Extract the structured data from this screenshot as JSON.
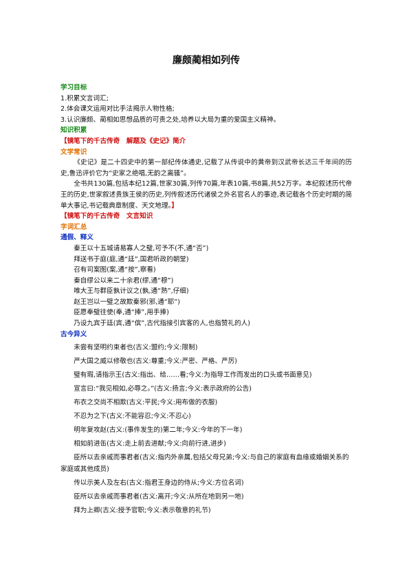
{
  "title": "廉颇蔺相如列传",
  "goals": {
    "heading": "学习目标",
    "items": [
      "1.积累文言词汇;",
      "2.体会课文运用对比手法揭示人物性格;",
      "3.认识廉颇、蔺相如思想品质的可贵之处,培养以大局为重的爱国主义精神。"
    ]
  },
  "knowledge": {
    "heading": "知识积累",
    "intro": {
      "heading": "【镜笔下的千古传奇　解题及《史记》简介",
      "subheading": "文学常识",
      "paragraphs": [
        "《史记》是二十四史中的第一部纪传体通史,记载了从传说中的黄帝到汉武帝长达三千年间的历史,鲁迅评价它为“史家之绝唱,无韵之离骚”。",
        "全书共130篇,包括本纪12篇,世家30篇,列传70篇,年表10篇,书8篇,共52万字。本纪叙述历代帝王的历史,世家叙述贵族王侯的历史,列传叙述历代诸侯之外名官名人的事迹,表记载各个历史时期的简单大事记,书记载典章制度、天文地理。"
      ],
      "closing": "】"
    },
    "classical": {
      "heading": "【镜笔下的千古传奇　文言知识",
      "subheading": "字词汇总",
      "groups": [
        {
          "heading": "通假、释义",
          "items": [
            "秦王以十五城请易寡人之璧,可予不(不,通“否”)",
            "拜送书于庭(庭,通“廷”,国君听政的朝堂)",
            "召有司案图(案,通“按”,察看)",
            "秦自缪公以来二十余君(缪,通“穆”)",
            "唯大王与群臣孰计议之(孰,通“熟”,仔细)",
            "赵王岂以一璧之故欺秦邪(邪,通“耶”)",
            "臣愿奉璧往使(奉,通“捧”,用手捧)",
            "乃设九宾于廷(宾,通“傧”,古代指接引宾客的人,也指赞礼的人)"
          ]
        },
        {
          "heading": "古今异义",
          "items": [
            "未尝有坚明约束者也(古义:盟约;今义:限制)",
            "严大国之威以修敬也(古义:尊重;今义:严密、严格、严厉)",
            "璧有瑕,请指示王(古义:指出、给……看;今义:为指导工作而发出的口头或书面意见)",
            "宣言曰:“我见相如,必辱之。”(古义:扬言;今义:表示政府的公告)",
            "布衣之交尚不相欺(古义:平民;今义:用布做的衣服)",
            "不忍为之下(古义:不能容忍;今义:不忍心)",
            "明年复攻赵(古义:(事件发生的)第二年;今义:今年的下一年)",
            "相如前进缶(古义:走上前去进献;今义:向前行进,进步)",
            "臣所以去亲戚而事君者(古义:指内外亲属,包括父母兄弟;今义:与自己的家庭有血缘或婚姻关系的家庭或其他成员)",
            "传以示美人及左右(古义:指君王身边的侍从;今义:方位名词)",
            "臣所以去亲戚而事君者(古义:离开;今义:从所在地到另一地)",
            "拜为上卿(古义:授予官职;今义:表示敬意的礼节)"
          ]
        }
      ]
    }
  }
}
